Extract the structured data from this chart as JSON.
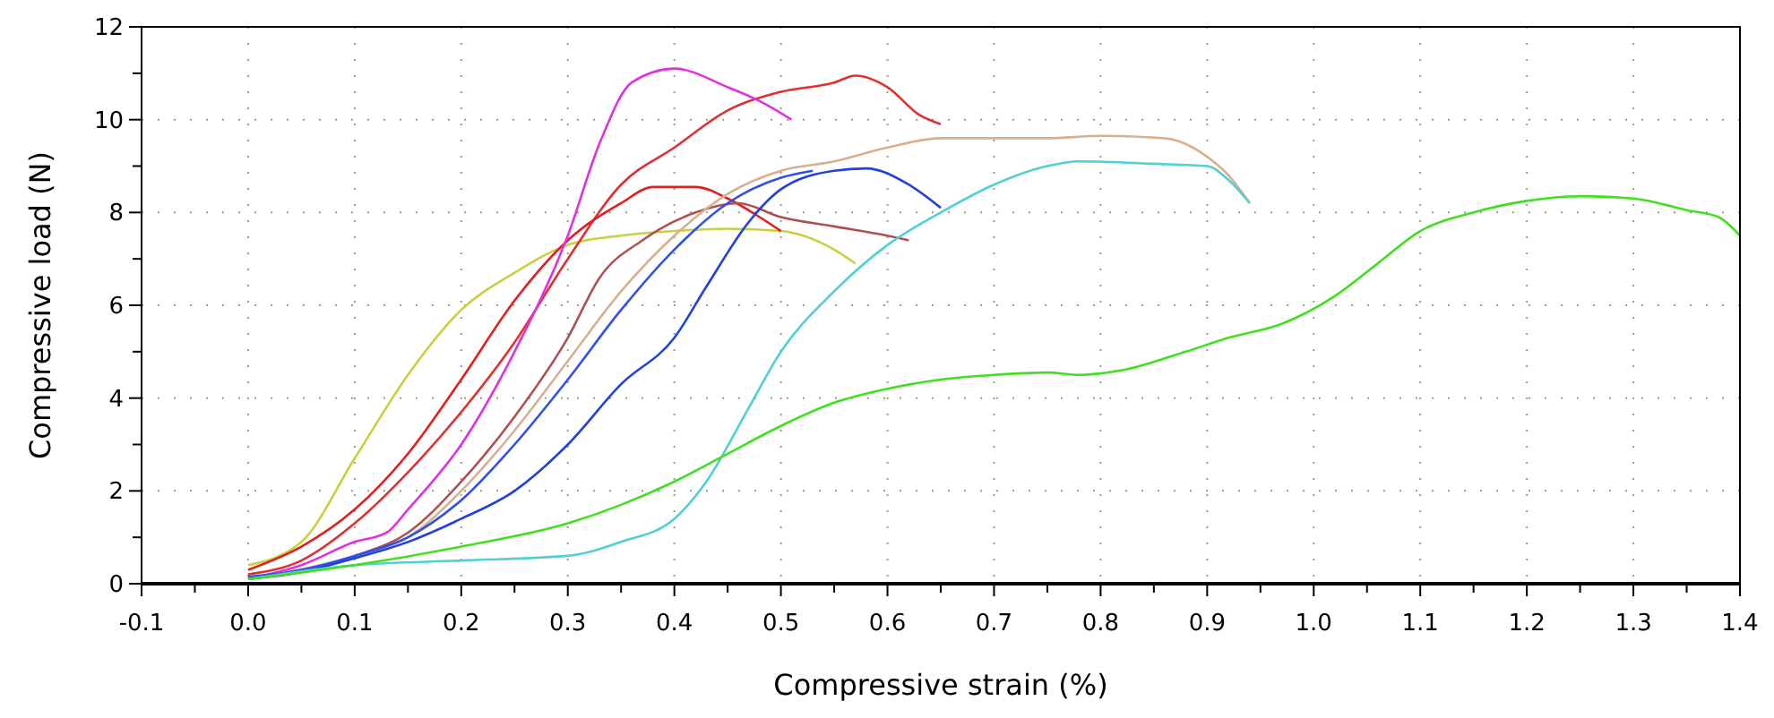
{
  "chart_data": {
    "type": "line",
    "xlabel": "Compressive strain (%)",
    "ylabel": "Compressive load (N)",
    "xlim": [
      -0.1,
      1.4
    ],
    "ylim": [
      0,
      12
    ],
    "xticks": [
      {
        "value": -0.1,
        "label": "-0.1"
      },
      {
        "value": 0,
        "label": "0.0"
      },
      {
        "value": 0.1,
        "label": "0.1"
      },
      {
        "value": 0.2,
        "label": "0.2"
      },
      {
        "value": 0.3,
        "label": "0.3"
      },
      {
        "value": 0.4,
        "label": "0.4"
      },
      {
        "value": 0.5,
        "label": "0.5"
      },
      {
        "value": 0.6,
        "label": "0.6"
      },
      {
        "value": 0.7,
        "label": "0.7"
      },
      {
        "value": 0.8,
        "label": "0.8"
      },
      {
        "value": 0.9,
        "label": "0.9"
      },
      {
        "value": 1,
        "label": "1.0"
      },
      {
        "value": 1.1,
        "label": "1.1"
      },
      {
        "value": 1.2,
        "label": "1.2"
      },
      {
        "value": 1.3,
        "label": "1.3"
      },
      {
        "value": 1.4,
        "label": "1.4"
      },
      {
        "value": -0.05,
        "label": null
      },
      {
        "value": 0.05,
        "label": null
      },
      {
        "value": 0.15,
        "label": null
      },
      {
        "value": 0.25,
        "label": null
      },
      {
        "value": 0.35,
        "label": null
      },
      {
        "value": 0.45,
        "label": null
      },
      {
        "value": 0.55,
        "label": null
      },
      {
        "value": 0.65,
        "label": null
      },
      {
        "value": 0.75,
        "label": null
      },
      {
        "value": 0.85,
        "label": null
      },
      {
        "value": 0.95,
        "label": null
      },
      {
        "value": 1.05,
        "label": null
      },
      {
        "value": 1.15,
        "label": null
      },
      {
        "value": 1.25,
        "label": null
      },
      {
        "value": 1.35,
        "label": null
      }
    ],
    "yticks": [
      0,
      2,
      4,
      6,
      8,
      10,
      12,
      {
        "value": 1,
        "label": null
      },
      {
        "value": 3,
        "label": null
      },
      {
        "value": 5,
        "label": null
      },
      {
        "value": 7,
        "label": null
      },
      {
        "value": 9,
        "label": null
      },
      {
        "value": 11,
        "label": null
      }
    ],
    "grid": true,
    "marker": "none",
    "line_style": "solid",
    "series": [
      {
        "color": "#c8d040",
        "x": [
          0,
          0.05,
          0.1,
          0.15,
          0.2,
          0.25,
          0.3,
          0.35,
          0.4,
          0.45,
          0.5,
          0.55,
          0.57
        ],
        "values": [
          0.4,
          0.9,
          2.7,
          4.5,
          5.9,
          6.7,
          7.3,
          7.5,
          7.6,
          7.65,
          7.6,
          7.2,
          6.9
        ]
      },
      {
        "color": "#e03030",
        "x": [
          0,
          0.05,
          0.1,
          0.15,
          0.2,
          0.25,
          0.3,
          0.35,
          0.4,
          0.45,
          0.5,
          0.55,
          0.57,
          0.6,
          0.63,
          0.65
        ],
        "values": [
          0.2,
          0.5,
          1.3,
          2.4,
          3.7,
          5.2,
          7.0,
          8.6,
          9.4,
          10.2,
          10.6,
          10.8,
          10.95,
          10.7,
          10.1,
          9.9
        ]
      },
      {
        "color": "#e02020",
        "x": [
          0,
          0.05,
          0.1,
          0.15,
          0.2,
          0.25,
          0.3,
          0.35,
          0.38,
          0.42,
          0.45,
          0.48,
          0.5
        ],
        "values": [
          0.3,
          0.8,
          1.6,
          2.8,
          4.4,
          6.1,
          7.4,
          8.2,
          8.55,
          8.55,
          8.3,
          7.9,
          7.6
        ]
      },
      {
        "color": "#e030e0",
        "x": [
          0,
          0.05,
          0.1,
          0.13,
          0.15,
          0.2,
          0.25,
          0.3,
          0.33,
          0.36,
          0.4,
          0.45,
          0.48,
          0.51
        ],
        "values": [
          0.1,
          0.4,
          0.9,
          1.1,
          1.6,
          3.0,
          5.0,
          7.5,
          9.5,
          10.8,
          11.1,
          10.7,
          10.4,
          10.0
        ]
      },
      {
        "color": "#b05050",
        "x": [
          0,
          0.1,
          0.15,
          0.2,
          0.25,
          0.3,
          0.33,
          0.37,
          0.42,
          0.46,
          0.5,
          0.55,
          0.6,
          0.62
        ],
        "values": [
          0.1,
          0.6,
          1.1,
          2.2,
          3.6,
          5.3,
          6.6,
          7.4,
          8.0,
          8.2,
          7.9,
          7.7,
          7.5,
          7.4
        ]
      },
      {
        "color": "#d8b090",
        "x": [
          0,
          0.1,
          0.15,
          0.2,
          0.25,
          0.3,
          0.35,
          0.4,
          0.45,
          0.5,
          0.55,
          0.6,
          0.65,
          0.7,
          0.75,
          0.8,
          0.86,
          0.9,
          0.92,
          0.94
        ],
        "values": [
          0.1,
          0.6,
          1.0,
          2.0,
          3.3,
          4.8,
          6.3,
          7.5,
          8.4,
          8.9,
          9.1,
          9.4,
          9.6,
          9.6,
          9.6,
          9.65,
          9.6,
          9.2,
          8.8,
          8.2
        ]
      },
      {
        "color": "#3050e8",
        "x": [
          0,
          0.05,
          0.1,
          0.15,
          0.2,
          0.25,
          0.3,
          0.35,
          0.4,
          0.45,
          0.5,
          0.53
        ],
        "values": [
          0.15,
          0.3,
          0.6,
          1.0,
          1.8,
          3.0,
          4.4,
          5.9,
          7.2,
          8.2,
          8.75,
          8.9
        ]
      },
      {
        "color": "#2040e0",
        "x": [
          0,
          0.05,
          0.1,
          0.15,
          0.2,
          0.25,
          0.3,
          0.35,
          0.4,
          0.43,
          0.47,
          0.5,
          0.55,
          0.58,
          0.62,
          0.65
        ],
        "values": [
          0.1,
          0.25,
          0.55,
          0.9,
          1.4,
          2.0,
          3.0,
          4.3,
          5.3,
          6.4,
          7.8,
          8.5,
          8.9,
          8.95,
          8.6,
          8.1
        ]
      },
      {
        "color": "#50d0d0",
        "x": [
          0,
          0.1,
          0.2,
          0.3,
          0.35,
          0.4,
          0.43,
          0.47,
          0.5,
          0.55,
          0.6,
          0.65,
          0.7,
          0.75,
          0.78,
          0.85,
          0.9,
          0.92,
          0.94
        ],
        "values": [
          0.1,
          0.4,
          0.5,
          0.6,
          0.9,
          1.4,
          2.2,
          3.8,
          5.0,
          6.3,
          7.3,
          8.0,
          8.6,
          9.0,
          9.1,
          9.05,
          9.0,
          8.7,
          8.2
        ]
      },
      {
        "color": "#40e020",
        "x": [
          0,
          0.1,
          0.2,
          0.3,
          0.35,
          0.4,
          0.45,
          0.5,
          0.55,
          0.6,
          0.65,
          0.7,
          0.75,
          0.78,
          0.82,
          0.88,
          0.92,
          0.97,
          1.02,
          1.06,
          1.1,
          1.15,
          1.2,
          1.25,
          1.3,
          1.35,
          1.38,
          1.4
        ],
        "values": [
          0.1,
          0.4,
          0.8,
          1.3,
          1.7,
          2.2,
          2.8,
          3.4,
          3.9,
          4.2,
          4.4,
          4.5,
          4.55,
          4.5,
          4.6,
          5.0,
          5.3,
          5.6,
          6.2,
          6.9,
          7.6,
          8.0,
          8.25,
          8.35,
          8.3,
          8.05,
          7.9,
          7.5
        ]
      }
    ]
  }
}
